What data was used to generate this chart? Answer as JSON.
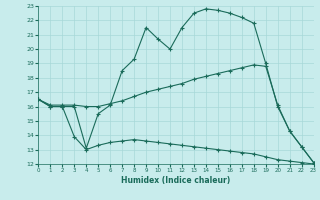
{
  "xlabel": "Humidex (Indice chaleur)",
  "bg_color": "#c8ecec",
  "grid_color": "#a8d8d8",
  "line_color": "#1a6b5a",
  "x_values": [
    0,
    1,
    2,
    3,
    4,
    5,
    6,
    7,
    8,
    9,
    10,
    11,
    12,
    13,
    14,
    15,
    16,
    17,
    18,
    19,
    20,
    21,
    22,
    23
  ],
  "line_max": [
    16.5,
    16.0,
    16.0,
    16.0,
    13.1,
    15.5,
    16.1,
    18.5,
    19.3,
    21.5,
    20.7,
    20.0,
    21.5,
    22.5,
    22.8,
    22.7,
    22.5,
    22.2,
    21.8,
    19.0,
    16.0,
    14.3,
    13.2,
    12.1
  ],
  "line_avg": [
    16.5,
    16.1,
    16.1,
    16.1,
    16.0,
    16.0,
    16.2,
    16.4,
    16.7,
    17.0,
    17.2,
    17.4,
    17.6,
    17.9,
    18.1,
    18.3,
    18.5,
    18.7,
    18.9,
    18.8,
    16.1,
    14.3,
    13.2,
    12.1
  ],
  "line_min": [
    16.5,
    16.0,
    16.0,
    13.9,
    13.0,
    13.3,
    13.5,
    13.6,
    13.7,
    13.6,
    13.5,
    13.4,
    13.3,
    13.2,
    13.1,
    13.0,
    12.9,
    12.8,
    12.7,
    12.5,
    12.3,
    12.2,
    12.1,
    12.0
  ],
  "ylim": [
    12,
    23
  ],
  "xlim": [
    0,
    23
  ],
  "yticks": [
    12,
    13,
    14,
    15,
    16,
    17,
    18,
    19,
    20,
    21,
    22,
    23
  ],
  "xticks": [
    0,
    1,
    2,
    3,
    4,
    5,
    6,
    7,
    8,
    9,
    10,
    11,
    12,
    13,
    14,
    15,
    16,
    17,
    18,
    19,
    20,
    21,
    22,
    23
  ]
}
